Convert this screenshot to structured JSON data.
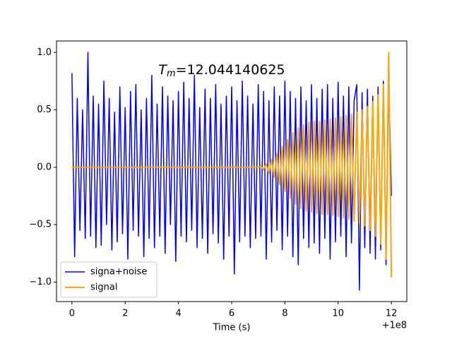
{
  "chart_data": {
    "type": "line",
    "annotation_symbol": "T",
    "annotation_subscript": "m",
    "annotation_value": "=12.044140625",
    "x_label": "Time (s)",
    "x_offset_label": "+1e8",
    "legend": "lower left",
    "x": [
      0,
      0.1,
      0.2,
      0.3,
      0.4,
      0.5,
      0.6,
      0.7,
      0.8,
      0.9,
      1,
      1.1,
      1.2,
      1.3,
      1.4,
      1.5,
      1.6,
      1.7,
      1.8,
      1.9,
      2,
      2.1,
      2.2,
      2.3,
      2.4,
      2.5,
      2.6,
      2.7,
      2.8,
      2.9,
      3,
      3.1,
      3.2,
      3.3,
      3.4,
      3.5,
      3.6,
      3.7,
      3.8,
      3.9,
      4,
      4.1,
      4.2,
      4.3,
      4.4,
      4.5,
      4.6,
      4.7,
      4.8,
      4.9,
      5,
      5.1,
      5.2,
      5.3,
      5.4,
      5.5,
      5.6,
      5.7,
      5.8,
      5.9,
      6,
      6.1,
      6.2,
      6.3,
      6.4,
      6.5,
      6.6,
      6.7,
      6.8,
      6.9,
      7,
      7.1,
      7.2,
      7.3,
      7.4,
      7.5,
      7.6,
      7.7,
      7.8,
      7.9,
      8,
      8.1,
      8.2,
      8.3,
      8.4,
      8.5,
      8.6,
      8.7,
      8.8,
      8.9,
      9,
      9.1,
      9.2,
      9.3,
      9.4,
      9.5,
      9.6,
      9.7,
      9.8,
      9.9,
      10,
      10.1,
      10.2,
      10.3,
      10.4,
      10.5,
      10.6,
      10.7,
      10.8,
      10.9,
      11,
      11.1,
      11.2,
      11.3,
      11.4,
      11.5,
      11.6,
      11.7,
      11.8,
      11.9,
      12
    ],
    "series": [
      {
        "name": "signa+noise",
        "color": "#0000ff",
        "width": 1.5,
        "values": [
          0.82,
          -0.78,
          0.6,
          -0.55,
          0.5,
          -0.62,
          1.0,
          -0.6,
          0.62,
          -0.7,
          0.55,
          -0.68,
          0.75,
          -0.5,
          0.6,
          -0.72,
          0.48,
          -0.65,
          0.7,
          -0.58,
          0.52,
          -0.8,
          0.66,
          -0.55,
          0.72,
          -0.6,
          0.5,
          -0.78,
          0.6,
          -0.62,
          0.8,
          -0.7,
          0.55,
          -0.6,
          0.7,
          -0.75,
          0.62,
          -0.5,
          0.58,
          -0.82,
          0.66,
          -0.6,
          0.74,
          -0.65,
          0.6,
          -0.55,
          0.8,
          -0.7,
          0.52,
          -0.62,
          0.68,
          -0.75,
          0.6,
          -0.58,
          0.72,
          -0.66,
          0.55,
          -0.8,
          0.62,
          -0.6,
          0.7,
          -0.93,
          0.58,
          -0.65,
          0.75,
          -0.6,
          0.62,
          -0.7,
          0.55,
          -0.62,
          0.72,
          -0.6,
          0.66,
          -0.8,
          0.58,
          -0.65,
          0.7,
          -0.55,
          0.62,
          -0.72,
          0.75,
          -0.6,
          0.66,
          -0.78,
          0.6,
          -0.85,
          0.7,
          -0.62,
          0.58,
          -0.7,
          0.72,
          -0.66,
          0.6,
          -0.75,
          0.68,
          -0.62,
          0.72,
          -0.8,
          0.6,
          -0.65,
          0.74,
          -0.6,
          0.62,
          -0.78,
          0.7,
          -0.66,
          0.58,
          0.72,
          -1.07,
          0.65,
          -0.7,
          0.68,
          -0.75,
          0.62,
          -0.8,
          0.7,
          -0.72,
          0.75,
          -0.85,
          0.8,
          -0.25
        ]
      },
      {
        "name": "signal",
        "color": "#ffa500",
        "width": 2,
        "values": [
          0,
          0,
          0,
          0,
          0,
          0,
          0,
          0,
          0,
          0,
          0,
          0,
          0,
          0,
          0,
          0,
          0,
          0,
          0,
          0,
          0,
          0,
          0,
          0,
          0,
          0,
          0,
          0,
          0,
          0,
          0,
          0,
          0,
          0,
          0,
          0,
          0,
          0,
          0,
          0,
          0,
          0,
          0,
          0,
          0,
          0,
          0,
          0,
          0,
          0,
          0,
          0,
          0,
          0,
          0,
          0,
          0,
          0,
          0,
          0,
          0,
          0,
          0,
          0,
          0,
          0,
          0,
          0,
          0,
          0,
          0,
          0.01,
          -0.02,
          0.03,
          -0.05,
          0.07,
          -0.09,
          0.12,
          -0.15,
          0.18,
          -0.21,
          0.24,
          -0.27,
          0.3,
          -0.32,
          0.34,
          -0.36,
          0.37,
          -0.38,
          0.39,
          -0.39,
          0.4,
          -0.4,
          0.4,
          -0.41,
          0.41,
          -0.41,
          0.42,
          -0.42,
          0.43,
          -0.43,
          0.44,
          -0.44,
          0.45,
          -0.45,
          0.46,
          -0.47,
          0.48,
          -0.49,
          0.5,
          -0.51,
          0.53,
          -0.55,
          0.57,
          -0.6,
          0.63,
          -0.67,
          0.72,
          -0.8,
          1.0,
          -0.96
        ]
      }
    ],
    "xlim": [
      -0.58,
      12.58
    ],
    "ylim": [
      -1.17,
      1.1
    ],
    "xticks": [
      0,
      2,
      4,
      6,
      8,
      10,
      12
    ],
    "yticks": [
      {
        "value": -1,
        "label": "−1.0"
      },
      {
        "value": -0.5,
        "label": "−0.5"
      },
      {
        "value": 0,
        "label": "0.0"
      },
      {
        "value": 0.5,
        "label": "0.5"
      },
      {
        "value": 1,
        "label": "1.0"
      }
    ]
  }
}
